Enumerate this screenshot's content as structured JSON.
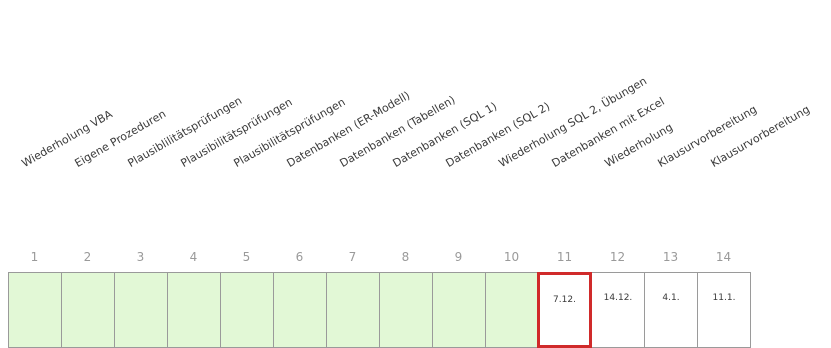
{
  "weeks": [
    {
      "number": "1",
      "topic": "Wiederholung VBA",
      "date": "",
      "status": "done"
    },
    {
      "number": "2",
      "topic": "Eigene Prozeduren",
      "date": "",
      "status": "done"
    },
    {
      "number": "3",
      "topic": "Plausiblilitätsprüfungen",
      "date": "",
      "status": "done"
    },
    {
      "number": "4",
      "topic": "Plausibilitätsprüfungen",
      "date": "",
      "status": "done"
    },
    {
      "number": "5",
      "topic": "Plausibilitätsprüfungen",
      "date": "",
      "status": "done"
    },
    {
      "number": "6",
      "topic": "Datenbanken (ER-Modell)",
      "date": "",
      "status": "done"
    },
    {
      "number": "7",
      "topic": "Datenbanken (Tabellen)",
      "date": "",
      "status": "done"
    },
    {
      "number": "8",
      "topic": "Datenbanken (SQL 1)",
      "date": "",
      "status": "done"
    },
    {
      "number": "9",
      "topic": "Datenbanken (SQL 2)",
      "date": "",
      "status": "done"
    },
    {
      "number": "10",
      "topic": "Wiederholung SQL 2, Übungen",
      "date": "",
      "status": "done"
    },
    {
      "number": "11",
      "topic": "Datenbanken mit Excel",
      "date": "7.12.",
      "status": "current"
    },
    {
      "number": "12",
      "topic": "Wiederholung",
      "date": "14.12.",
      "status": "upcoming"
    },
    {
      "number": "13",
      "topic": "Klausurvorbereitung",
      "date": "4.1.",
      "status": "upcoming"
    },
    {
      "number": "14",
      "topic": "Klausurvorbereitung",
      "date": "11.1.",
      "status": "upcoming"
    }
  ],
  "colors": {
    "done_fill": "#e2f8d6",
    "current_border": "#d02a2a",
    "cell_border": "#9a9a9a"
  }
}
